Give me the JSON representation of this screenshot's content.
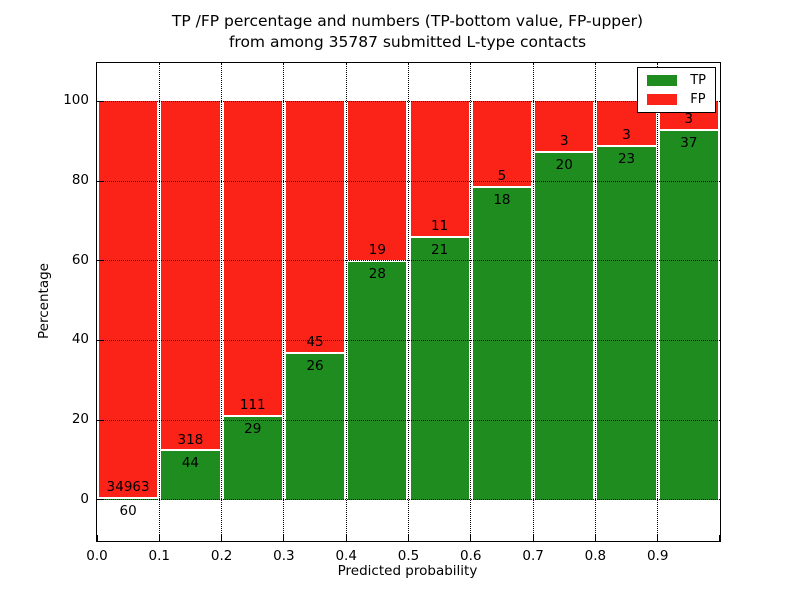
{
  "title": {
    "line1": "TP /FP percentage and numbers (TP-bottom value, FP-upper)",
    "line2": "from among 35787 submitted L-type contacts"
  },
  "axes": {
    "xlabel": "Predicted probability",
    "ylabel": "Percentage",
    "x_tick_labels": [
      "0.0",
      "0.1",
      "0.2",
      "0.3",
      "0.4",
      "0.5",
      "0.6",
      "0.7",
      "0.8",
      "0.9"
    ],
    "y_tick_labels": [
      "0",
      "20",
      "40",
      "60",
      "80",
      "100"
    ],
    "y_tick_values": [
      0,
      20,
      40,
      60,
      80,
      100
    ]
  },
  "legend": {
    "items": [
      {
        "label": "TP",
        "color": "#1e8c1e"
      },
      {
        "label": "FP",
        "color": "#fb2218"
      }
    ]
  },
  "colors": {
    "tp": "#1e8c1e",
    "fp": "#fb2218",
    "grid": "#000000",
    "background": "#ffffff"
  },
  "chart_data": {
    "type": "bar",
    "stacked": true,
    "normalized_to_percent": true,
    "title": "TP /FP percentage and numbers (TP-bottom value, FP-upper) from among 35787 submitted L-type contacts",
    "xlabel": "Predicted probability",
    "ylabel": "Percentage",
    "total_contacts": 35787,
    "bin_edges": [
      0.0,
      0.1,
      0.2,
      0.3,
      0.4,
      0.5,
      0.6,
      0.7,
      0.8,
      0.9,
      1.0
    ],
    "bin_labels": [
      "0.0-0.1",
      "0.1-0.2",
      "0.2-0.3",
      "0.3-0.4",
      "0.4-0.5",
      "0.5-0.6",
      "0.6-0.7",
      "0.7-0.8",
      "0.8-0.9",
      "0.9-1.0"
    ],
    "series": [
      {
        "name": "TP",
        "position": "bottom",
        "color": "#1e8c1e",
        "counts": [
          60,
          44,
          29,
          26,
          28,
          21,
          18,
          20,
          23,
          37
        ]
      },
      {
        "name": "FP",
        "position": "top",
        "color": "#fb2218",
        "counts": [
          34963,
          318,
          111,
          45,
          19,
          11,
          5,
          3,
          3,
          3
        ]
      }
    ],
    "tp_percent": [
      0.17,
      12.15,
      20.71,
      36.62,
      59.57,
      65.63,
      78.26,
      86.96,
      88.46,
      92.5
    ],
    "fp_percent": [
      99.83,
      87.85,
      79.29,
      63.38,
      40.43,
      34.37,
      21.74,
      13.04,
      11.54,
      7.5
    ],
    "xlim": [
      0.0,
      1.0
    ],
    "ylim": [
      -10.3,
      109.6
    ],
    "grid": true,
    "grid_style": "dotted",
    "legend_position": "upper right"
  }
}
